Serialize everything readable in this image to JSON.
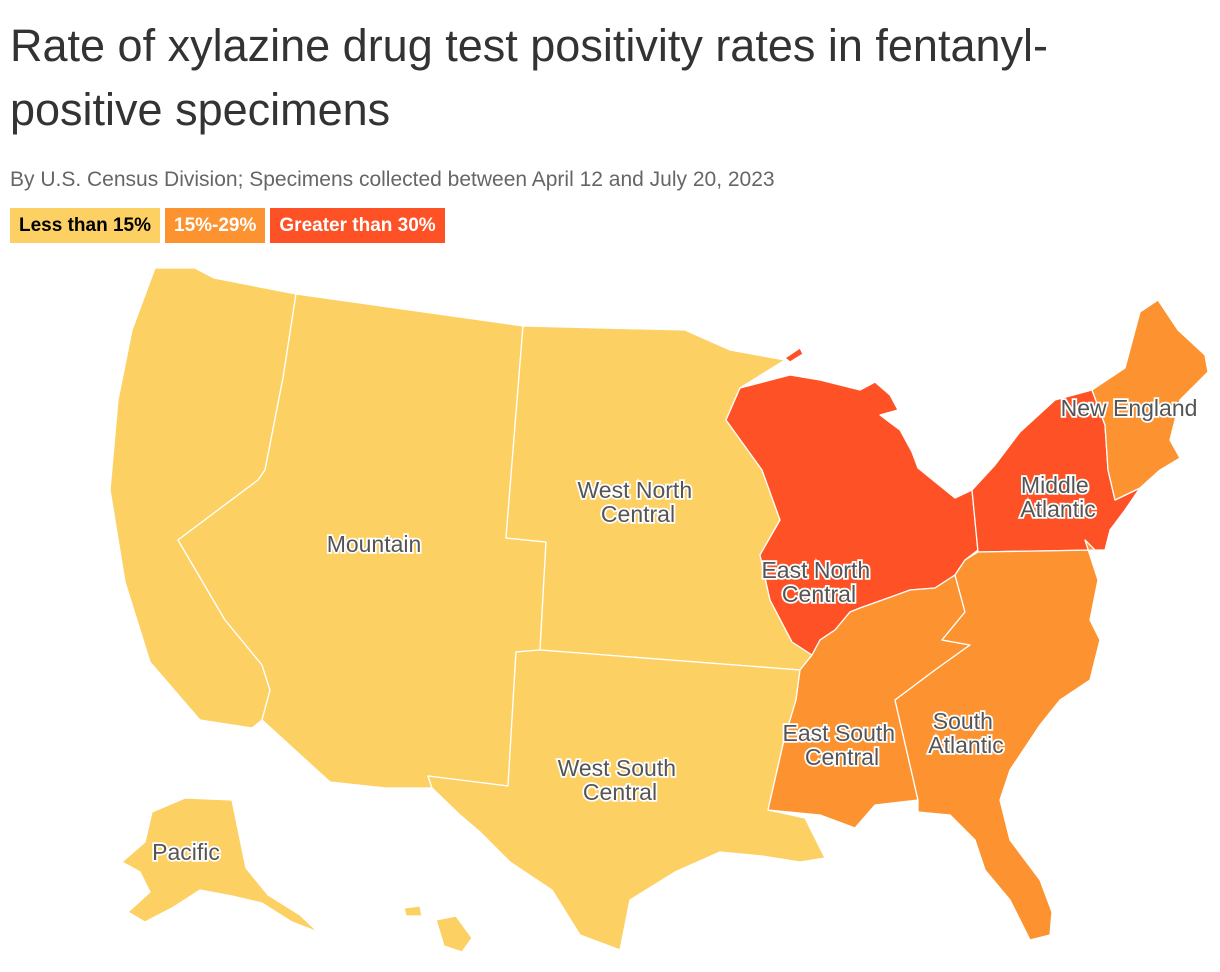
{
  "title": "Rate of xylazine drug test positivity rates in fentanyl-positive specimens",
  "subtitle": "By U.S. Census Division; Specimens collected between April 12 and July 20, 2023",
  "legend": [
    {
      "label": "Less than 15%",
      "color": "#fcd062",
      "text_color": "#000000"
    },
    {
      "label": "15%-29%",
      "color": "#fd9330",
      "text_color": "#ffffff"
    },
    {
      "label": "Greater than 30%",
      "color": "#fe5125",
      "text_color": "#ffffff"
    }
  ],
  "colors": {
    "low": "#fcd062",
    "mid": "#fd9330",
    "high": "#fe5125",
    "border": "#ffffff"
  },
  "regions": {
    "pacific": {
      "name": "Pacific",
      "category": "Less than 15%"
    },
    "mountain": {
      "name": "Mountain",
      "category": "Less than 15%"
    },
    "west_north_central": {
      "name": "West North Central",
      "label_lines": [
        "West North",
        "Central"
      ],
      "category": "Less than 15%"
    },
    "west_south_central": {
      "name": "West South Central",
      "label_lines": [
        "West South",
        "Central"
      ],
      "category": "Less than 15%"
    },
    "east_north_central": {
      "name": "East North Central",
      "label_lines": [
        "East North",
        "Central"
      ],
      "category": "Greater than 30%"
    },
    "east_south_central": {
      "name": "East South Central",
      "label_lines": [
        "East South",
        "Central"
      ],
      "category": "15%-29%"
    },
    "south_atlantic": {
      "name": "South Atlantic",
      "label_lines": [
        "South",
        "Atlantic"
      ],
      "category": "15%-29%"
    },
    "middle_atlantic": {
      "name": "Middle Atlantic",
      "label_lines": [
        "Middle",
        "Atlantic"
      ],
      "category": "Greater than 30%"
    },
    "new_england": {
      "name": "New England",
      "category": "15%-29%"
    }
  }
}
